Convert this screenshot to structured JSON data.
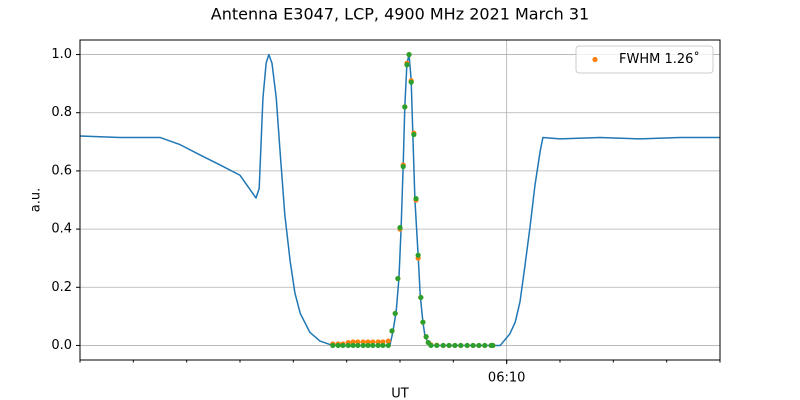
{
  "chart_data": {
    "type": "line",
    "title": "Antenna E3047, LCP, 4900 MHz 2021 March 31",
    "xlabel": "UT",
    "ylabel": "a.u.",
    "xlim": [
      362,
      374
    ],
    "ylim": [
      -0.05,
      1.05
    ],
    "xticks": [
      {
        "value": 370,
        "label": "06:10"
      }
    ],
    "xminorticks": [
      362,
      363,
      364,
      365,
      366,
      367,
      368,
      369,
      370,
      371,
      372,
      373,
      374
    ],
    "yticks": [
      {
        "value": 0,
        "label": "0.0"
      },
      0.2,
      0.4,
      0.6,
      0.8,
      {
        "value": 1,
        "label": "1.0"
      }
    ],
    "grid": true,
    "legend": "upper right",
    "series": [
      {
        "kind": "line",
        "color": "#1f77b4",
        "x": [
          362.0,
          362.75,
          363.5,
          363.88,
          364.25,
          364.63,
          365.0,
          365.3,
          365.36,
          365.43,
          365.49,
          365.54,
          365.6,
          365.68,
          365.75,
          365.84,
          365.94,
          366.03,
          366.13,
          366.31,
          366.5,
          366.69,
          366.88,
          367.81,
          367.87,
          367.93,
          367.98,
          368.02,
          368.06,
          368.09,
          368.13,
          368.17,
          368.21,
          368.24,
          368.28,
          368.34,
          368.38,
          368.43,
          368.47,
          368.53,
          368.6,
          369.88,
          369.97,
          370.06,
          370.16,
          370.25,
          370.34,
          370.44,
          370.53,
          370.63,
          370.68,
          371.0,
          371.75,
          372.5,
          373.25,
          374.0
        ],
        "values": [
          0.72,
          0.715,
          0.715,
          0.69,
          0.655,
          0.62,
          0.585,
          0.507,
          0.54,
          0.85,
          0.97,
          1.0,
          0.97,
          0.85,
          0.67,
          0.45,
          0.29,
          0.18,
          0.11,
          0.045,
          0.015,
          0.003,
          0.0,
          0.0,
          0.05,
          0.12,
          0.23,
          0.4,
          0.62,
          0.82,
          0.97,
          1.0,
          0.91,
          0.73,
          0.5,
          0.31,
          0.17,
          0.08,
          0.03,
          0.01,
          0.0,
          0.0,
          0.02,
          0.04,
          0.08,
          0.15,
          0.27,
          0.41,
          0.55,
          0.67,
          0.715,
          0.71,
          0.715,
          0.71,
          0.715,
          0.715
        ]
      },
      {
        "kind": "scatter",
        "name": "FWHM 1.26˚",
        "color": "#ff7f0e",
        "x": [
          366.74,
          366.84,
          366.93,
          367.03,
          367.12,
          367.21,
          367.31,
          367.4,
          367.49,
          367.59,
          367.68,
          367.78,
          367.85,
          367.91,
          367.96,
          368.0,
          368.06,
          368.09,
          368.13,
          368.17,
          368.21,
          368.26,
          368.3,
          368.34,
          368.39,
          368.43,
          368.49,
          368.53,
          368.58,
          368.69,
          368.81,
          368.92,
          369.03,
          369.14,
          369.26,
          369.37,
          369.48,
          369.59,
          369.71,
          369.74
        ],
        "values": [
          0.005,
          0.005,
          0.005,
          0.01,
          0.012,
          0.012,
          0.012,
          0.012,
          0.012,
          0.012,
          0.012,
          0.015,
          0.05,
          0.11,
          0.23,
          0.4,
          0.62,
          0.82,
          0.97,
          1.0,
          0.91,
          0.73,
          0.5,
          0.3,
          0.165,
          0.08,
          0.03,
          0.01,
          0.002,
          0.001,
          0.0,
          0.0,
          0.0,
          0.0,
          0.0,
          0.0,
          0.0,
          0.0,
          0.0,
          0.0
        ]
      },
      {
        "kind": "scatter",
        "color": "#2ca02c",
        "x": [
          366.74,
          366.84,
          366.93,
          367.03,
          367.12,
          367.21,
          367.31,
          367.4,
          367.49,
          367.59,
          367.68,
          367.78,
          367.85,
          367.91,
          367.96,
          368.0,
          368.06,
          368.09,
          368.13,
          368.17,
          368.21,
          368.26,
          368.3,
          368.34,
          368.39,
          368.43,
          368.49,
          368.53,
          368.58,
          368.69,
          368.81,
          368.92,
          369.03,
          369.14,
          369.26,
          369.37,
          369.48,
          369.59,
          369.71,
          369.74
        ],
        "values": [
          0.0,
          0.0,
          0.0,
          0.0,
          0.0,
          0.0,
          0.0,
          0.0,
          0.0,
          0.0,
          0.0,
          0.0,
          0.05,
          0.11,
          0.23,
          0.405,
          0.615,
          0.82,
          0.965,
          1.0,
          0.905,
          0.725,
          0.505,
          0.31,
          0.165,
          0.08,
          0.03,
          0.01,
          0.0,
          0.0,
          0.0,
          0.0,
          0.0,
          0.0,
          0.0,
          0.0,
          0.0,
          0.0,
          0.0,
          0.0
        ]
      }
    ]
  }
}
